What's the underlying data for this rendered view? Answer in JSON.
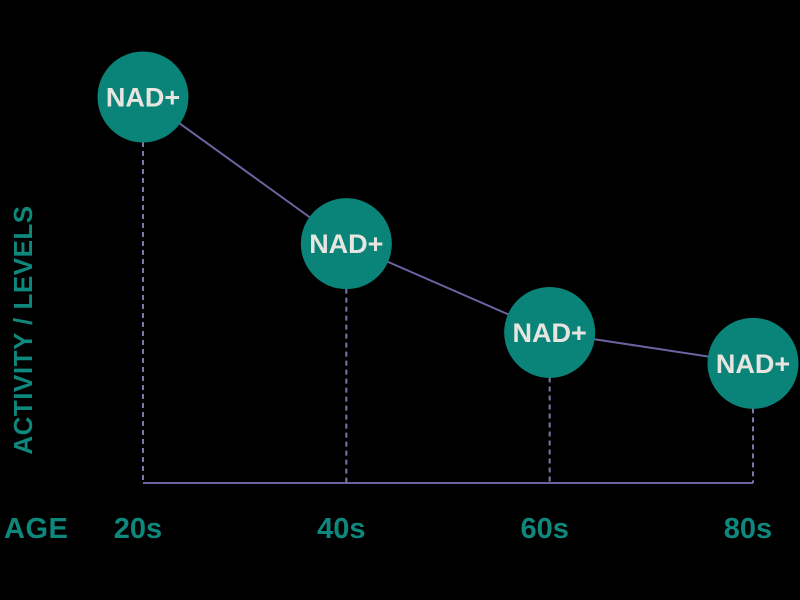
{
  "page": {
    "background": "#000000"
  },
  "style": {
    "circle_fill": "#0a8479",
    "point_label_color": "#e7e5e0",
    "trend_line_color": "#6e63a1",
    "drop_line_color": "#7d75a6",
    "baseline_color": "#6e63a1",
    "axis_text_color": "#0e877d"
  },
  "chart_data": {
    "type": "line",
    "title": "",
    "xlabel": "AGE",
    "ylabel": "ACTIVITY / LEVELS",
    "categories": [
      "20s",
      "40s",
      "60s",
      "80s"
    ],
    "series": [
      {
        "name": "NAD+",
        "point_label": "NAD+",
        "values": [
          100,
          62,
          39,
          31
        ]
      }
    ],
    "ylim": [
      0,
      100
    ],
    "grid": false,
    "legend": false,
    "notes": "NAD+ activity/levels decline with age; each data point is a filled circle labeled NAD+ with a dashed drop line to the age axis"
  }
}
